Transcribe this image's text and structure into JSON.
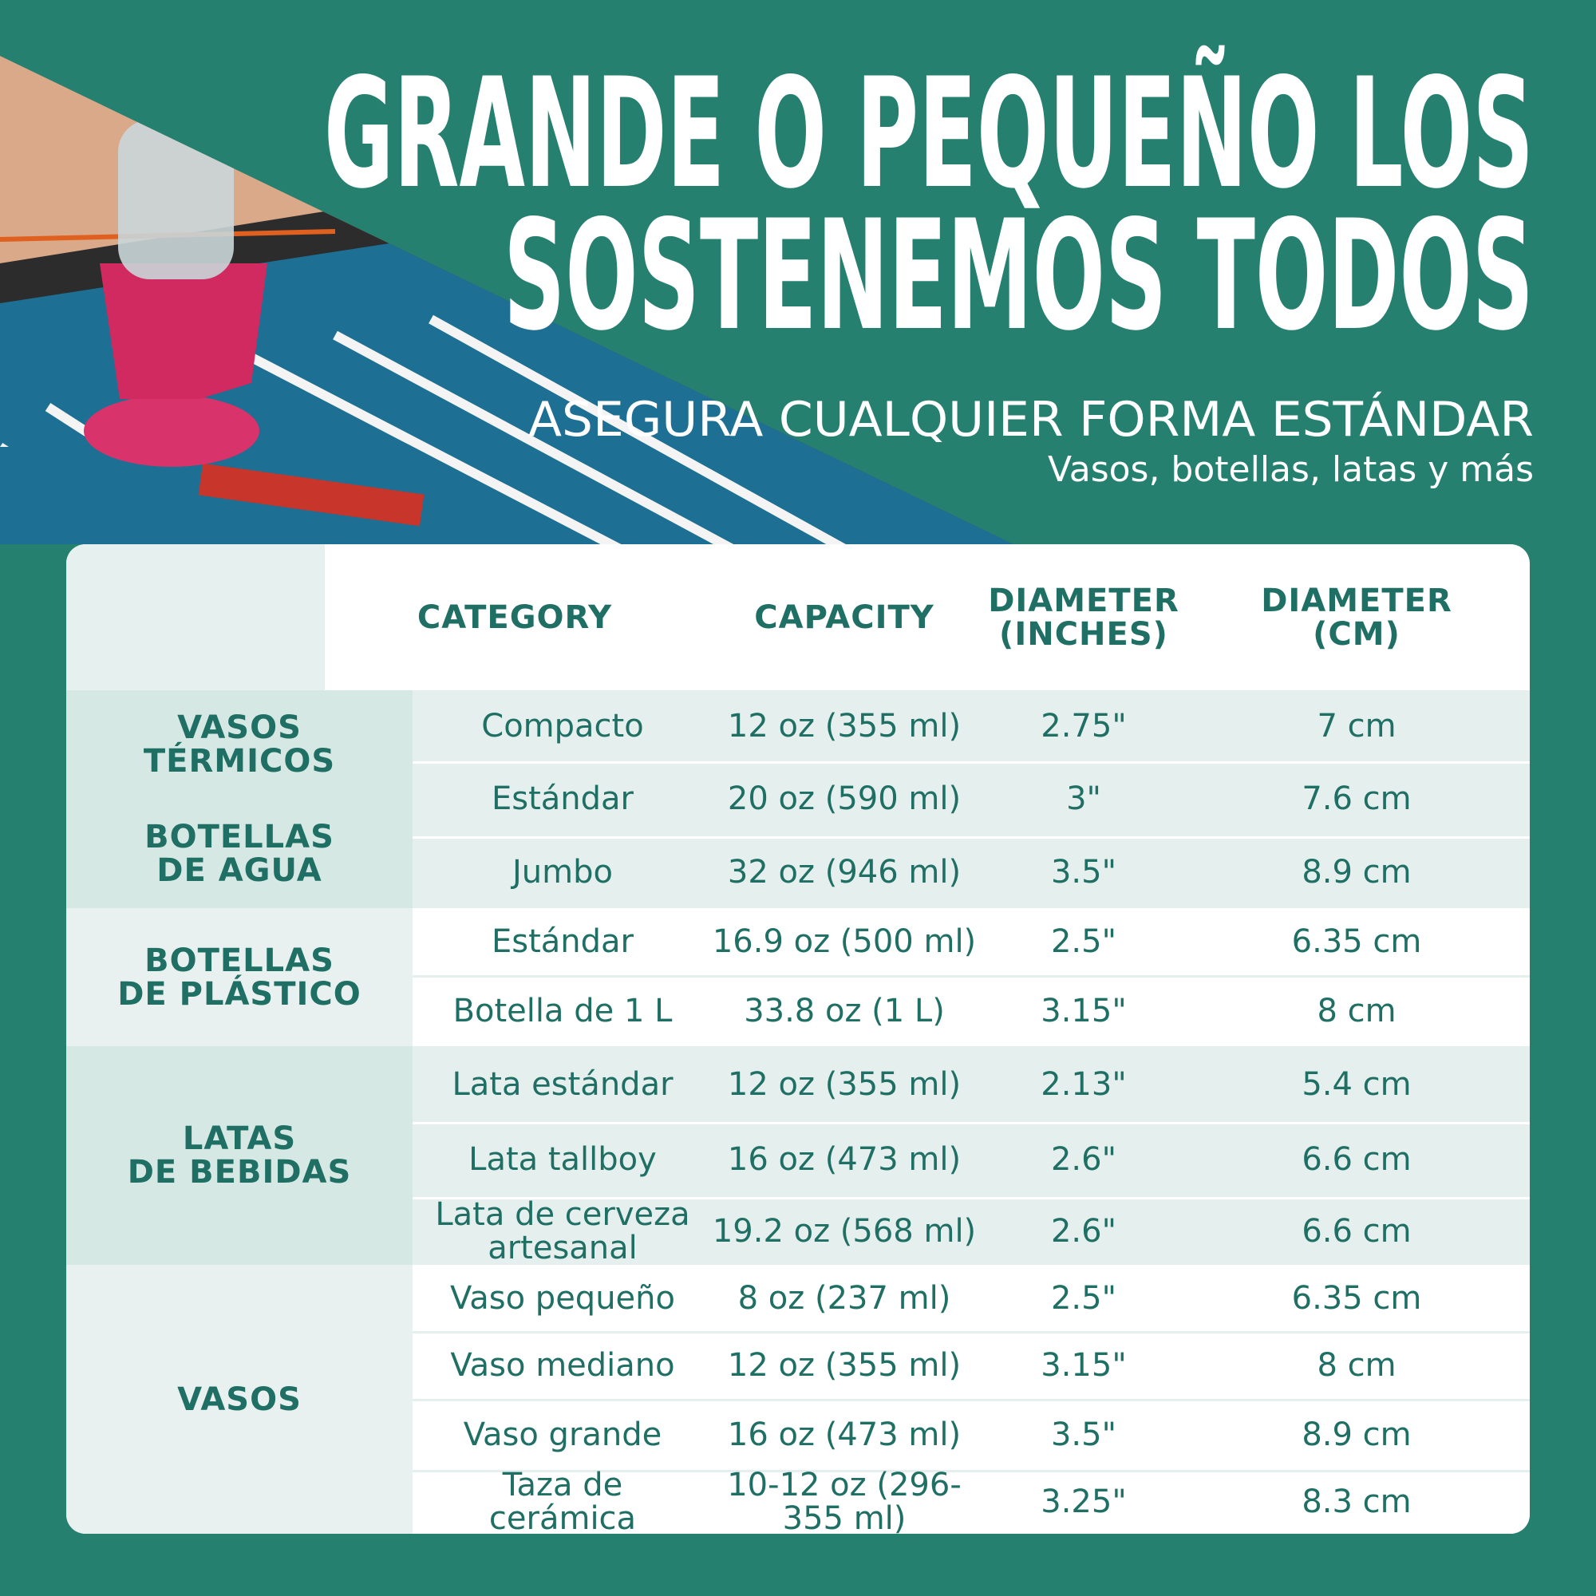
{
  "header": {
    "title_lines": [
      "GRANDE O PEQUEÑO LOS",
      "SOSTENEMOS TODOS"
    ],
    "subtitle": "ASEGURA CUALQUIER FORMA ESTÁNDAR",
    "tagline": "Vasos, botellas, latas y más"
  },
  "table": {
    "headers": [
      [
        "CATEGORY"
      ],
      [
        "CAPACITY"
      ],
      [
        "DIAMETER",
        "(INCHES)"
      ],
      [
        "DIAMETER",
        "(CM)"
      ]
    ],
    "groups": [
      {
        "labels": [
          [
            "VASOS",
            "TÉRMICOS"
          ],
          [
            "BOTELLAS",
            "DE AGUA"
          ]
        ],
        "rows": [
          [
            "Compacto",
            "12 oz (355 ml)",
            "2.75\"",
            "7 cm"
          ],
          [
            "Estándar",
            "20 oz (590 ml)",
            "3\"",
            "7.6 cm"
          ],
          [
            "Jumbo",
            "32 oz (946 ml)",
            "3.5\"",
            "8.9 cm"
          ]
        ]
      },
      {
        "labels": [
          [
            "BOTELLAS",
            "DE PLÁSTICO"
          ]
        ],
        "rows": [
          [
            "Estándar",
            "16.9 oz (500 ml)",
            "2.5\"",
            "6.35 cm"
          ],
          [
            "Botella de 1 L",
            "33.8 oz (1 L)",
            "3.15\"",
            "8 cm"
          ]
        ]
      },
      {
        "labels": [
          [
            "LATAS",
            "DE BEBIDAS"
          ]
        ],
        "rows": [
          [
            "Lata estándar",
            "12 oz (355 ml)",
            "2.13\"",
            "5.4 cm"
          ],
          [
            "Lata tallboy",
            "16 oz (473 ml)",
            "2.6\"",
            "6.6 cm"
          ],
          [
            [
              "Lata de cerveza",
              "artesanal"
            ],
            "19.2 oz (568 ml)",
            "2.6\"",
            "6.6 cm"
          ]
        ]
      },
      {
        "labels": [
          [
            "VASOS"
          ]
        ],
        "rows": [
          [
            "Vaso pequeño",
            "8 oz (237 ml)",
            "2.5\"",
            "6.35 cm"
          ],
          [
            "Vaso mediano",
            "12 oz (355 ml)",
            "3.15\"",
            "8 cm"
          ],
          [
            "Vaso grande",
            "16 oz (473 ml)",
            "3.5\"",
            "8.9 cm"
          ],
          [
            [
              "Taza de",
              "cerámica"
            ],
            "10-12 oz (296-355 ml)",
            "3.25\"",
            "8.3 cm"
          ]
        ]
      }
    ]
  }
}
